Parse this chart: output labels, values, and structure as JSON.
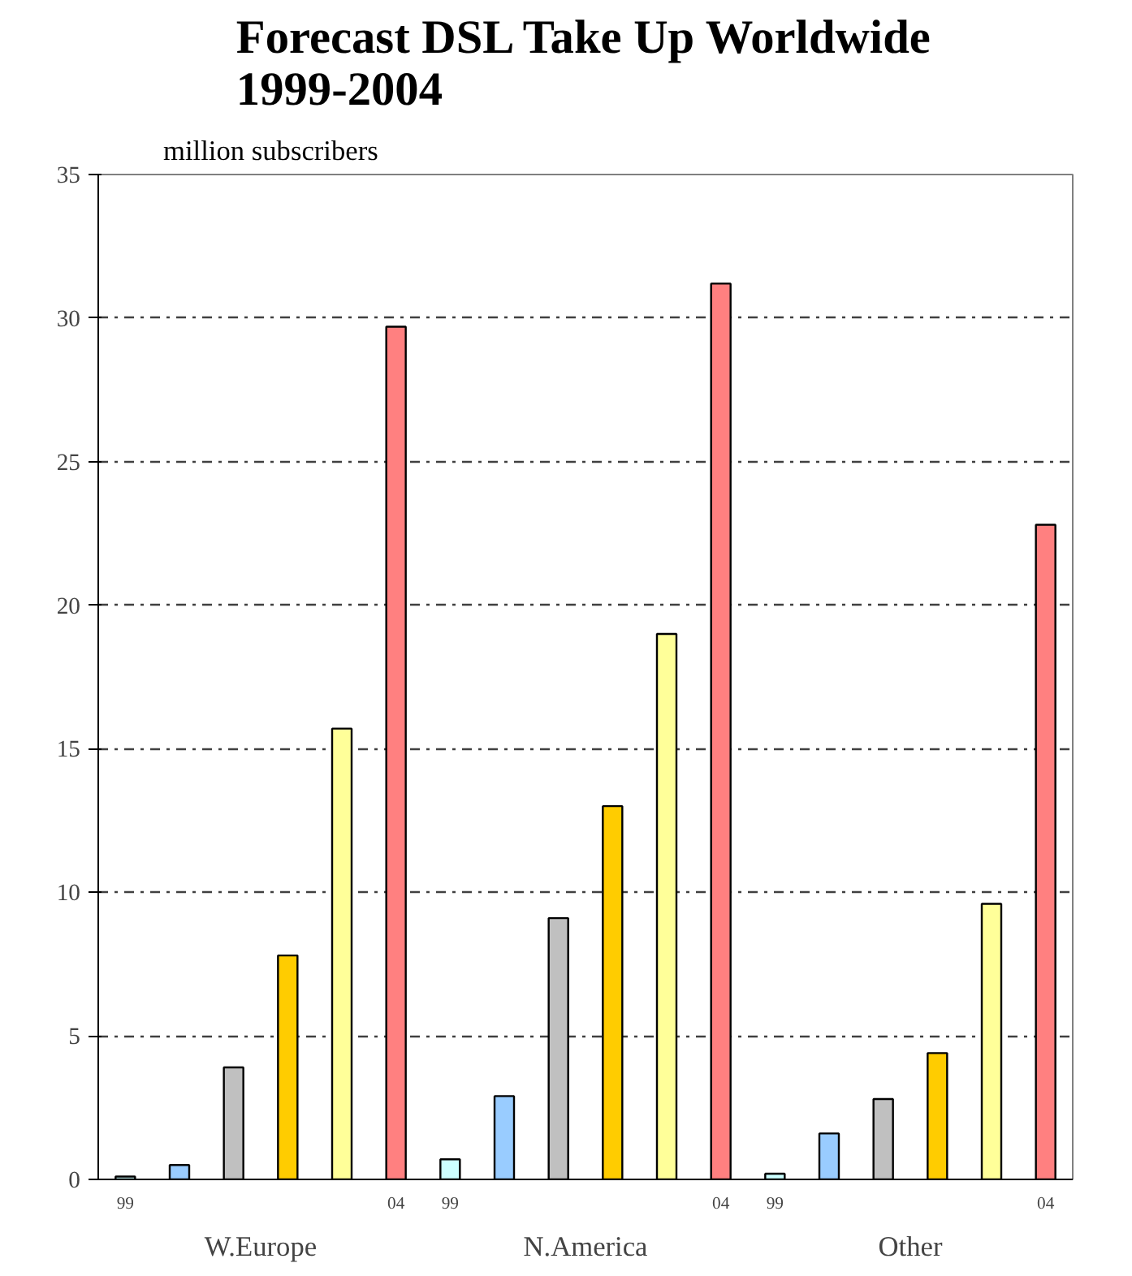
{
  "chart_data": {
    "type": "bar",
    "title": "Forecast DSL Take Up Worldwide\n1999-2004",
    "ylabel": "million subscribers",
    "categories": [
      "W.Europe",
      "N.America",
      "Other"
    ],
    "series": [
      {
        "name": "99",
        "color": "#ccffff",
        "values": [
          0.1,
          0.7,
          0.2
        ]
      },
      {
        "color": "#99ccff",
        "values": [
          0.5,
          2.9,
          1.6
        ]
      },
      {
        "color": "#c0c0c0",
        "values": [
          3.9,
          9.1,
          2.8
        ]
      },
      {
        "color": "#ffcc00",
        "values": [
          7.8,
          13.0,
          4.4
        ]
      },
      {
        "color": "#ffff99",
        "values": [
          15.7,
          19.0,
          9.6
        ]
      },
      {
        "name": "04",
        "color": "#ff8080",
        "values": [
          29.7,
          31.2,
          22.8
        ]
      }
    ],
    "ylim": [
      0,
      35
    ],
    "yticks": [
      0,
      5,
      10,
      15,
      20,
      25,
      30,
      35
    ],
    "grid": "y"
  }
}
